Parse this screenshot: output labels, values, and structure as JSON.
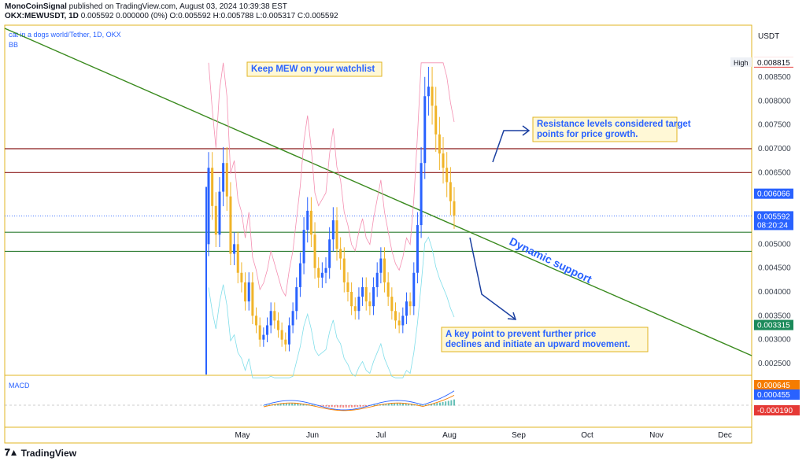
{
  "header": {
    "author": "MonoCoinSignal",
    "published": "published on TradingView.com, August 03, 2024 10:39:38 EST",
    "symbol": "OKX:MEWUSDT, 1D",
    "ohlc": "0.005592 0.000000 (0%) O:0.005592 H:0.005788 L:0.005317 C:0.005592"
  },
  "legend": {
    "title": "cat in a dogs world/Tether, 1D, OKX",
    "indicator": "BB"
  },
  "macd_label": "MACD",
  "footer": {
    "brand": "TradingView"
  },
  "colors": {
    "up": "#2962ff",
    "down": "#f0b429",
    "trend": "#3a8a1e",
    "resistance": "#8b1a1a",
    "support": "#2e7d32",
    "frame": "#e0b422",
    "annot": "#2962ff",
    "bb_upper": "#f48fb1",
    "bb_lower": "#80deea"
  },
  "chart_data": {
    "type": "candlestick",
    "y_axis_unit": "USDT",
    "price_ticks": [
      "0.008500",
      "0.008000",
      "0.007500",
      "0.007000",
      "0.006500",
      "0.006000",
      "0.005500",
      "0.005000",
      "0.004500",
      "0.004000",
      "0.003500",
      "0.003000",
      "0.002500"
    ],
    "months": [
      "May",
      "Jun",
      "Jul",
      "Aug",
      "Sep",
      "Oct",
      "Nov",
      "Dec"
    ],
    "price_labels": [
      {
        "text": "0.008816",
        "value": 0.008816,
        "color": "#e53935"
      },
      {
        "text": "0.008815",
        "value": 0.008815,
        "color": "#ffffff",
        "tag": "High"
      },
      {
        "text": "0.006066",
        "value": 0.006066,
        "color": "#2962ff"
      },
      {
        "text": "0.005592",
        "value": 0.005592,
        "color": "#2962ff",
        "sub": "08:20:24"
      },
      {
        "text": "0.003315",
        "value": 0.003315,
        "color": "#1b8a5a"
      }
    ],
    "macd_labels": [
      {
        "text": "0.000645",
        "color": "#f57c00"
      },
      {
        "text": "0.000455",
        "color": "#2962ff"
      },
      {
        "text": "-0.000190",
        "color": "#e53935"
      }
    ],
    "resistance_levels": [
      0.007,
      0.0065
    ],
    "support_levels": [
      0.00525,
      0.00485
    ],
    "closes": [
      0.0066,
      0.0058,
      0.0052,
      0.0061,
      0.0067,
      0.006,
      0.0048,
      0.005,
      0.0044,
      0.0042,
      0.0038,
      0.0042,
      0.0035,
      0.0033,
      0.003,
      0.0031,
      0.0033,
      0.0036,
      0.0034,
      0.0032,
      0.003,
      0.0029,
      0.0033,
      0.0036,
      0.0041,
      0.0046,
      0.0053,
      0.0057,
      0.0052,
      0.0045,
      0.0043,
      0.0044,
      0.0045,
      0.0051,
      0.0055,
      0.0049,
      0.0047,
      0.0042,
      0.004,
      0.0037,
      0.0036,
      0.0039,
      0.0041,
      0.0038,
      0.0037,
      0.0041,
      0.0044,
      0.0047,
      0.0042,
      0.0039,
      0.0036,
      0.0034,
      0.0033,
      0.0035,
      0.0038,
      0.0037,
      0.0044,
      0.0054,
      0.0067,
      0.0081,
      0.0083,
      0.0079,
      0.0073,
      0.0069,
      0.0066,
      0.0063,
      0.0059,
      0.0056
    ],
    "annotations": [
      {
        "text": "Keep MEW on your watchlist"
      },
      {
        "text": "Resistance levels considered target points for price growth."
      },
      {
        "text": "A key point to prevent further price declines and initiate an upward movement."
      },
      {
        "text": "Dynamic support"
      }
    ]
  }
}
